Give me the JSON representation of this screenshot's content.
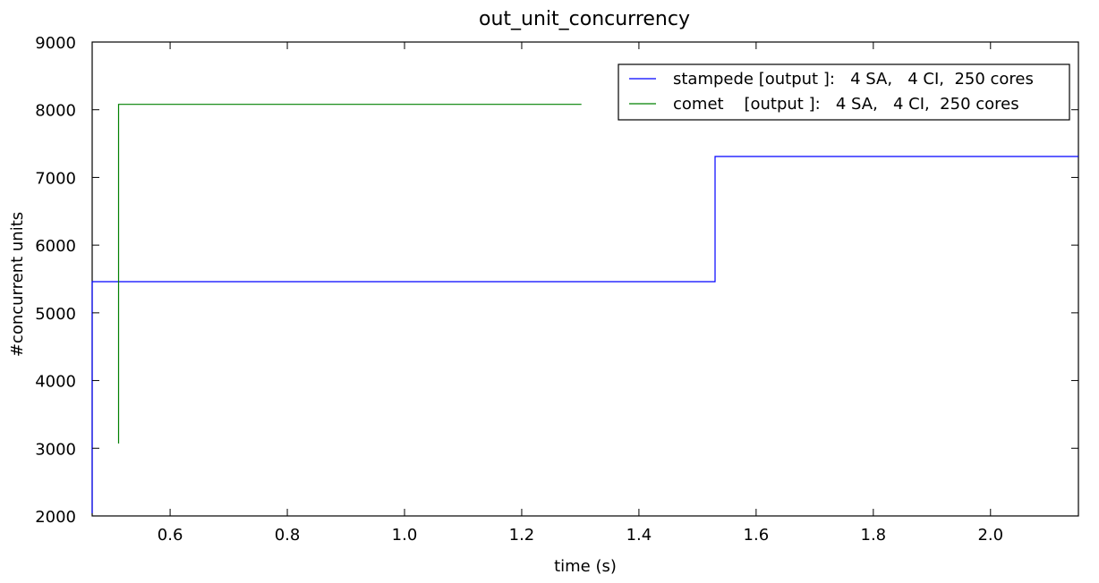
{
  "chart_data": {
    "type": "line",
    "title": "out_unit_concurrency",
    "xlabel": "time (s)",
    "ylabel": "#concurrent units",
    "xlim": [
      0.467,
      2.15
    ],
    "ylim": [
      2000,
      9000
    ],
    "xticks": [
      0.6,
      0.8,
      1.0,
      1.2,
      1.4,
      1.6,
      1.8,
      2.0
    ],
    "xtick_labels": [
      "0.6",
      "0.8",
      "1.0",
      "1.2",
      "1.4",
      "1.6",
      "1.8",
      "2.0"
    ],
    "yticks": [
      2000,
      3000,
      4000,
      5000,
      6000,
      7000,
      8000,
      9000
    ],
    "ytick_labels": [
      "2000",
      "3000",
      "4000",
      "5000",
      "6000",
      "7000",
      "8000",
      "9000"
    ],
    "grid": false,
    "legend_position": "top-right",
    "step": true,
    "series": [
      {
        "name": "stampede [output ]:   4 SA,   4 CI,  250 cores",
        "color": "#0000ff",
        "x": [
          0.467,
          0.467,
          1.53,
          1.53,
          2.15
        ],
        "y": [
          2040,
          5460,
          5460,
          7310,
          7310
        ]
      },
      {
        "name": "comet    [output ]:   4 SA,   4 CI,  250 cores",
        "color": "#008000",
        "x": [
          0.512,
          0.512,
          1.302
        ],
        "y": [
          3070,
          8080,
          8080
        ]
      }
    ]
  }
}
